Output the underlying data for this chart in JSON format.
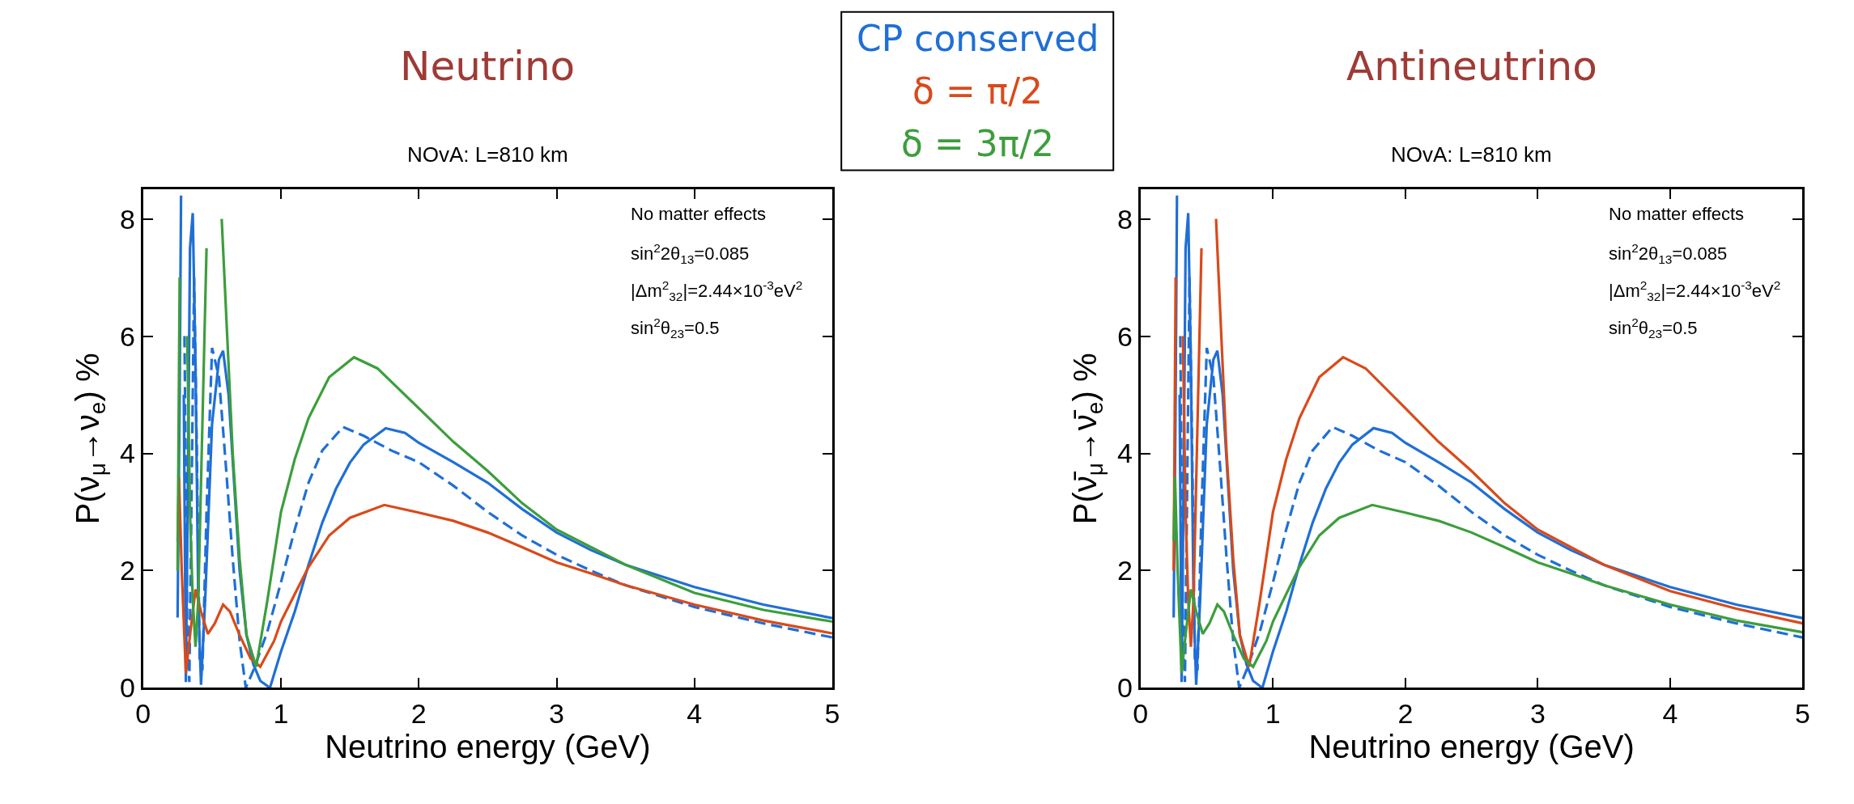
{
  "chart_data": [
    {
      "type": "line",
      "title": "Neutrino",
      "subtitle": "NOvA: L=810 km",
      "xlabel": "Neutrino energy (GeV)",
      "ylabel": "P(ν$_{μ}$→ν$_{e}$) %",
      "xlim": [
        0,
        5
      ],
      "ylim": [
        0,
        8.5
      ],
      "xticks": [
        0,
        1,
        2,
        3,
        4,
        5
      ],
      "yticks": [
        0,
        2,
        4,
        6,
        8
      ],
      "legend": "top right",
      "annotations": [
        "No matter effects",
        "sin$^{2}$2θ$_{13}$=0.085",
        "|Δm$^{2}$$_{32}$|=2.44×10$^{-3}$eV$^{2}$",
        "sin$^{2}$θ$_{23}$=0.5"
      ],
      "series": [
        {
          "name": "CP conserved",
          "color": "#1f6fd6",
          "line_style": "solid",
          "x": [
            0.25,
            0.265,
            0.275,
            0.285,
            0.295,
            0.31,
            0.325,
            0.34,
            0.36,
            0.38,
            0.4,
            0.42,
            0.45,
            0.5,
            0.55,
            0.58,
            0.62,
            0.66,
            0.7,
            0.75,
            0.8,
            0.85,
            0.92,
            1.0,
            1.1,
            1.2,
            1.3,
            1.4,
            1.5,
            1.6,
            1.76,
            1.9,
            2.0,
            2.25,
            2.5,
            2.75,
            3.0,
            3.25,
            3.5,
            4.0,
            4.5,
            5.0
          ],
          "values": [
            1.2,
            5.0,
            8.4,
            null,
            5.0,
            0.1,
            3.5,
            7.5,
            8.1,
            5.5,
            1.5,
            0.05,
            1.5,
            4.5,
            5.6,
            5.75,
            5.0,
            3.5,
            2.0,
            0.9,
            0.4,
            0.12,
            0.0,
            0.62,
            1.3,
            2.1,
            2.82,
            3.4,
            3.84,
            4.15,
            4.43,
            4.35,
            4.18,
            3.85,
            3.5,
            3.05,
            2.65,
            2.35,
            2.1,
            1.72,
            1.42,
            1.19
          ]
        },
        {
          "color": "#1f6fd6",
          "line_style": "dashed",
          "x": [
            0.3,
            0.32,
            0.335,
            0.35,
            0.37,
            0.39,
            0.41,
            0.43,
            0.46,
            0.5,
            0.55,
            0.6,
            0.65,
            0.7,
            0.745,
            0.8,
            0.9,
            1.0,
            1.1,
            1.2,
            1.3,
            1.45,
            1.6,
            1.8,
            2.0,
            2.25,
            2.5,
            2.75,
            3.0,
            3.25,
            3.5,
            4.0,
            4.5,
            5.0
          ],
          "values": [
            6.0,
            1.0,
            0.1,
            3.0,
            7.0,
            4.0,
            0.5,
            0.3,
            3.0,
            5.8,
            5.3,
            3.8,
            2.2,
            0.8,
            0.0,
            0.3,
            0.95,
            1.8,
            2.7,
            3.5,
            4.05,
            4.45,
            4.3,
            4.05,
            3.85,
            3.45,
            3.0,
            2.6,
            2.27,
            2.0,
            1.75,
            1.38,
            1.1,
            0.86
          ]
        },
        {
          "name": "δ = π/2",
          "color": "#d94a1a",
          "line_style": "solid",
          "x": [
            0.25,
            0.26,
            0.28,
            0.31,
            0.34,
            0.38,
            0.42,
            0.47,
            0.52,
            0.58,
            0.63,
            0.7,
            0.78,
            0.85,
            0.95,
            1.0,
            1.1,
            1.2,
            1.35,
            1.5,
            1.75,
            2.0,
            2.25,
            2.5,
            2.75,
            3.0,
            3.25,
            3.5,
            4.0,
            4.5,
            5.0
          ],
          "values": [
            2.5,
            3.6,
            2.0,
            0.25,
            0.9,
            1.68,
            1.3,
            0.92,
            1.1,
            1.42,
            1.3,
            0.9,
            0.5,
            0.36,
            0.8,
            1.13,
            1.6,
            2.06,
            2.6,
            2.9,
            3.12,
            2.99,
            2.85,
            2.65,
            2.4,
            2.14,
            1.95,
            1.75,
            1.42,
            1.15,
            0.93
          ]
        },
        {
          "name": "δ = 3π/2",
          "color": "#3c9e3c",
          "line_style": "solid",
          "x": [
            0.25,
            0.265,
            0.275,
            0.3,
            0.32,
            0.34,
            0.36,
            0.38,
            0.4,
            0.43,
            0.46,
            0.49,
            0.54,
            0.57,
            0.6,
            0.65,
            0.7,
            0.75,
            0.82,
            0.9,
            1.0,
            1.1,
            1.2,
            1.35,
            1.53,
            1.7,
            2.0,
            2.25,
            2.5,
            2.75,
            3.0,
            3.25,
            3.5,
            4.0,
            4.5,
            5.0
          ],
          "values": [
            2.0,
            7.0,
            null,
            null,
            6.0,
            3.0,
            1.5,
            0.7,
            1.5,
            4.5,
            7.5,
            null,
            null,
            8.0,
            6.5,
            4.0,
            2.2,
            0.9,
            0.36,
            1.47,
            3.0,
            3.9,
            4.6,
            5.3,
            5.64,
            5.45,
            4.77,
            4.2,
            3.7,
            3.15,
            2.7,
            2.4,
            2.1,
            1.62,
            1.33,
            1.13
          ]
        }
      ]
    },
    {
      "type": "line",
      "title": "Antineutrino",
      "subtitle": "NOvA: L=810 km",
      "xlabel": "Neutrino energy (GeV)",
      "ylabel": "P(ν̄$_{μ}$→ν̄$_{e}$) %",
      "xlim": [
        0,
        5
      ],
      "ylim": [
        0,
        8.5
      ],
      "xticks": [
        0,
        1,
        2,
        3,
        4,
        5
      ],
      "yticks": [
        0,
        2,
        4,
        6,
        8
      ],
      "annotations": [
        "No matter effects",
        "sin$^{2}$2θ$_{13}$=0.085",
        "|Δm$^{2}$$_{32}$|=2.44×10$^{-3}$eV$^{2}$",
        "sin$^{2}$θ$_{23}$=0.5"
      ],
      "series": [
        {
          "color": "#1f6fd6",
          "line_style": "solid",
          "x": [
            0.25,
            0.265,
            0.275,
            0.285,
            0.295,
            0.31,
            0.325,
            0.34,
            0.36,
            0.38,
            0.4,
            0.42,
            0.45,
            0.5,
            0.55,
            0.58,
            0.62,
            0.66,
            0.7,
            0.75,
            0.8,
            0.85,
            0.92,
            1.0,
            1.1,
            1.2,
            1.3,
            1.4,
            1.5,
            1.6,
            1.76,
            1.9,
            2.0,
            2.25,
            2.5,
            2.75,
            3.0,
            3.25,
            3.5,
            4.0,
            4.5,
            5.0
          ],
          "values": [
            1.2,
            5.0,
            8.4,
            null,
            5.0,
            0.1,
            3.5,
            7.5,
            8.1,
            5.5,
            1.5,
            0.05,
            1.5,
            4.5,
            5.6,
            5.75,
            5.0,
            3.5,
            2.0,
            0.9,
            0.4,
            0.12,
            0.0,
            0.62,
            1.3,
            2.1,
            2.82,
            3.4,
            3.84,
            4.15,
            4.43,
            4.35,
            4.18,
            3.85,
            3.5,
            3.05,
            2.65,
            2.35,
            2.1,
            1.72,
            1.42,
            1.19
          ]
        },
        {
          "color": "#1f6fd6",
          "line_style": "dashed",
          "x": [
            0.3,
            0.32,
            0.335,
            0.35,
            0.37,
            0.39,
            0.41,
            0.43,
            0.46,
            0.5,
            0.55,
            0.6,
            0.65,
            0.7,
            0.745,
            0.8,
            0.9,
            1.0,
            1.1,
            1.2,
            1.3,
            1.45,
            1.6,
            1.8,
            2.0,
            2.25,
            2.5,
            2.75,
            3.0,
            3.25,
            3.5,
            4.0,
            4.5,
            5.0
          ],
          "values": [
            6.0,
            1.0,
            0.1,
            3.0,
            7.0,
            4.0,
            0.5,
            0.3,
            3.0,
            5.8,
            5.3,
            3.8,
            2.2,
            0.8,
            0.0,
            0.3,
            0.95,
            1.8,
            2.7,
            3.5,
            4.05,
            4.45,
            4.3,
            4.05,
            3.85,
            3.45,
            3.0,
            2.6,
            2.27,
            2.0,
            1.75,
            1.38,
            1.1,
            0.86
          ]
        },
        {
          "color": "#d94a1a",
          "line_style": "solid",
          "x": [
            0.25,
            0.265,
            0.275,
            0.3,
            0.32,
            0.34,
            0.36,
            0.38,
            0.4,
            0.43,
            0.46,
            0.49,
            0.54,
            0.57,
            0.6,
            0.65,
            0.7,
            0.75,
            0.82,
            0.9,
            1.0,
            1.1,
            1.2,
            1.35,
            1.53,
            1.7,
            2.0,
            2.25,
            2.5,
            2.75,
            3.0,
            3.25,
            3.5,
            4.0,
            4.5,
            5.0
          ],
          "values": [
            2.0,
            7.0,
            null,
            null,
            6.0,
            3.0,
            1.5,
            0.7,
            1.5,
            4.5,
            7.5,
            null,
            null,
            8.0,
            6.5,
            4.0,
            2.2,
            0.9,
            0.36,
            1.47,
            3.0,
            3.9,
            4.6,
            5.3,
            5.64,
            5.45,
            4.77,
            4.2,
            3.7,
            3.15,
            2.7,
            2.4,
            2.1,
            1.65,
            1.35,
            1.1
          ]
        },
        {
          "color": "#3c9e3c",
          "line_style": "solid",
          "x": [
            0.25,
            0.26,
            0.28,
            0.31,
            0.34,
            0.38,
            0.42,
            0.47,
            0.52,
            0.58,
            0.63,
            0.7,
            0.78,
            0.85,
            0.95,
            1.0,
            1.1,
            1.2,
            1.35,
            1.5,
            1.75,
            2.0,
            2.25,
            2.5,
            2.75,
            3.0,
            3.25,
            3.5,
            4.0,
            4.5,
            5.0
          ],
          "values": [
            2.5,
            3.6,
            2.0,
            0.25,
            0.9,
            1.68,
            1.3,
            0.92,
            1.1,
            1.42,
            1.3,
            0.9,
            0.5,
            0.36,
            0.8,
            1.13,
            1.6,
            2.06,
            2.6,
            2.9,
            3.12,
            2.99,
            2.85,
            2.65,
            2.4,
            2.14,
            1.95,
            1.75,
            1.42,
            1.15,
            0.95
          ]
        }
      ]
    }
  ]
}
